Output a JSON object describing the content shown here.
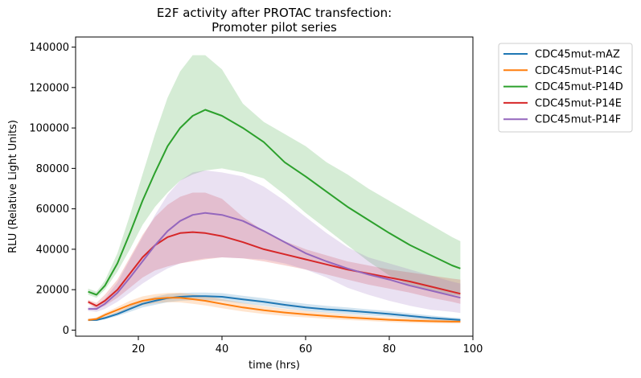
{
  "chart_data": {
    "type": "line",
    "title_lines": [
      "E2F activity after PROTAC transfection:",
      "Promoter pilot series"
    ],
    "xlabel": "time (hrs)",
    "ylabel": "RLU (Relative Light Units)",
    "xlim": [
      5,
      100
    ],
    "ylim": [
      -3000,
      145000
    ],
    "xticks": [
      20,
      40,
      60,
      80,
      100
    ],
    "yticks": [
      0,
      20000,
      40000,
      60000,
      80000,
      100000,
      120000,
      140000
    ],
    "grid": false,
    "legend_position": "outside upper right",
    "x": [
      8,
      10,
      12,
      15,
      18,
      21,
      24,
      27,
      30,
      33,
      36,
      40,
      45,
      50,
      55,
      60,
      65,
      70,
      75,
      80,
      85,
      90,
      95,
      97
    ],
    "series": [
      {
        "name": "CDC45mut-mAZ",
        "color": "#1f77b4",
        "mean": [
          5000,
          5000,
          6000,
          8000,
          10500,
          13000,
          14500,
          15800,
          16500,
          16800,
          16800,
          16500,
          15200,
          14000,
          12500,
          11200,
          10300,
          9600,
          8800,
          8000,
          7000,
          6000,
          5300,
          5000
        ],
        "lower": [
          4500,
          4500,
          5300,
          7000,
          9000,
          11200,
          12500,
          13800,
          14500,
          14800,
          14800,
          14500,
          13200,
          12000,
          10700,
          9500,
          8700,
          8000,
          7300,
          6600,
          5700,
          4900,
          4300,
          4100
        ],
        "upper": [
          5500,
          5600,
          6800,
          9000,
          12000,
          14800,
          16500,
          17800,
          18300,
          18600,
          18600,
          18300,
          17000,
          15800,
          14300,
          13000,
          12000,
          11200,
          10300,
          9400,
          8300,
          7200,
          6300,
          6000
        ]
      },
      {
        "name": "CDC45mut-P14C",
        "color": "#ff7f0e",
        "mean": [
          5000,
          5500,
          7500,
          10000,
          12500,
          14500,
          15500,
          16000,
          16000,
          15300,
          14500,
          13000,
          11200,
          9800,
          8700,
          7800,
          7000,
          6300,
          5700,
          5100,
          4700,
          4400,
          4200,
          4200
        ],
        "lower": [
          4400,
          4800,
          6500,
          8500,
          10500,
          12300,
          13300,
          13800,
          13700,
          13000,
          12200,
          10800,
          9200,
          8000,
          7000,
          6300,
          5600,
          5000,
          4500,
          4000,
          3600,
          3400,
          3300,
          3300
        ],
        "upper": [
          5600,
          6300,
          8500,
          11500,
          14500,
          16700,
          17800,
          18400,
          18500,
          17800,
          17000,
          15400,
          13400,
          11800,
          10500,
          9500,
          8600,
          7800,
          7000,
          6300,
          5800,
          5400,
          5200,
          5200
        ]
      },
      {
        "name": "CDC45mut-P14D",
        "color": "#2ca02c",
        "mean": [
          19000,
          17500,
          22000,
          33000,
          48000,
          64000,
          78000,
          91000,
          100000,
          106000,
          109000,
          106000,
          100000,
          93000,
          83000,
          76000,
          68500,
          61000,
          54500,
          48000,
          42000,
          37000,
          32000,
          30500
        ],
        "lower": [
          17500,
          16000,
          20000,
          29000,
          40000,
          52000,
          61000,
          68000,
          74000,
          77000,
          79000,
          80000,
          78000,
          75000,
          67000,
          58000,
          50000,
          42000,
          34000,
          27000,
          22000,
          19500,
          17500,
          17000
        ],
        "upper": [
          20500,
          19000,
          24500,
          38000,
          57000,
          77000,
          97000,
          115000,
          128000,
          136000,
          136000,
          129000,
          112000,
          103000,
          97000,
          91000,
          83000,
          77000,
          70000,
          64000,
          58000,
          52000,
          46000,
          44000
        ]
      },
      {
        "name": "CDC45mut-P14E",
        "color": "#d62728",
        "mean": [
          14000,
          12000,
          14500,
          20000,
          28000,
          36000,
          42000,
          46000,
          48000,
          48500,
          48000,
          46500,
          43500,
          40000,
          37500,
          35000,
          32500,
          30000,
          28000,
          26000,
          24000,
          21500,
          19000,
          18000
        ],
        "lower": [
          13000,
          10500,
          12000,
          16000,
          21000,
          26000,
          29500,
          31500,
          33000,
          34000,
          35000,
          36000,
          35500,
          34000,
          32000,
          30000,
          27500,
          25000,
          22500,
          20500,
          18500,
          16000,
          14000,
          13000
        ],
        "upper": [
          15000,
          13500,
          17500,
          25000,
          36000,
          47000,
          56000,
          62000,
          66000,
          68000,
          68000,
          65000,
          56000,
          49000,
          44000,
          40000,
          37000,
          34000,
          32000,
          30000,
          28500,
          27000,
          25500,
          25000
        ]
      },
      {
        "name": "CDC45mut-P14F",
        "color": "#9467bd",
        "mean": [
          10500,
          10500,
          13000,
          18500,
          26000,
          34000,
          42000,
          49000,
          54000,
          57000,
          58000,
          57000,
          54000,
          49000,
          43500,
          38000,
          34000,
          30500,
          27500,
          25000,
          22000,
          19500,
          17000,
          16000
        ],
        "lower": [
          9500,
          9000,
          10500,
          14000,
          18500,
          23000,
          27000,
          30500,
          33000,
          34500,
          35500,
          36000,
          35500,
          35000,
          33000,
          30000,
          26000,
          21000,
          17500,
          14500,
          12000,
          10000,
          9000,
          8500
        ],
        "upper": [
          11500,
          12000,
          15500,
          23500,
          35000,
          46000,
          57000,
          67000,
          74000,
          78000,
          79000,
          78000,
          76000,
          71000,
          64000,
          56000,
          48000,
          41000,
          36000,
          33000,
          30000,
          27000,
          24000,
          23000
        ]
      }
    ]
  }
}
